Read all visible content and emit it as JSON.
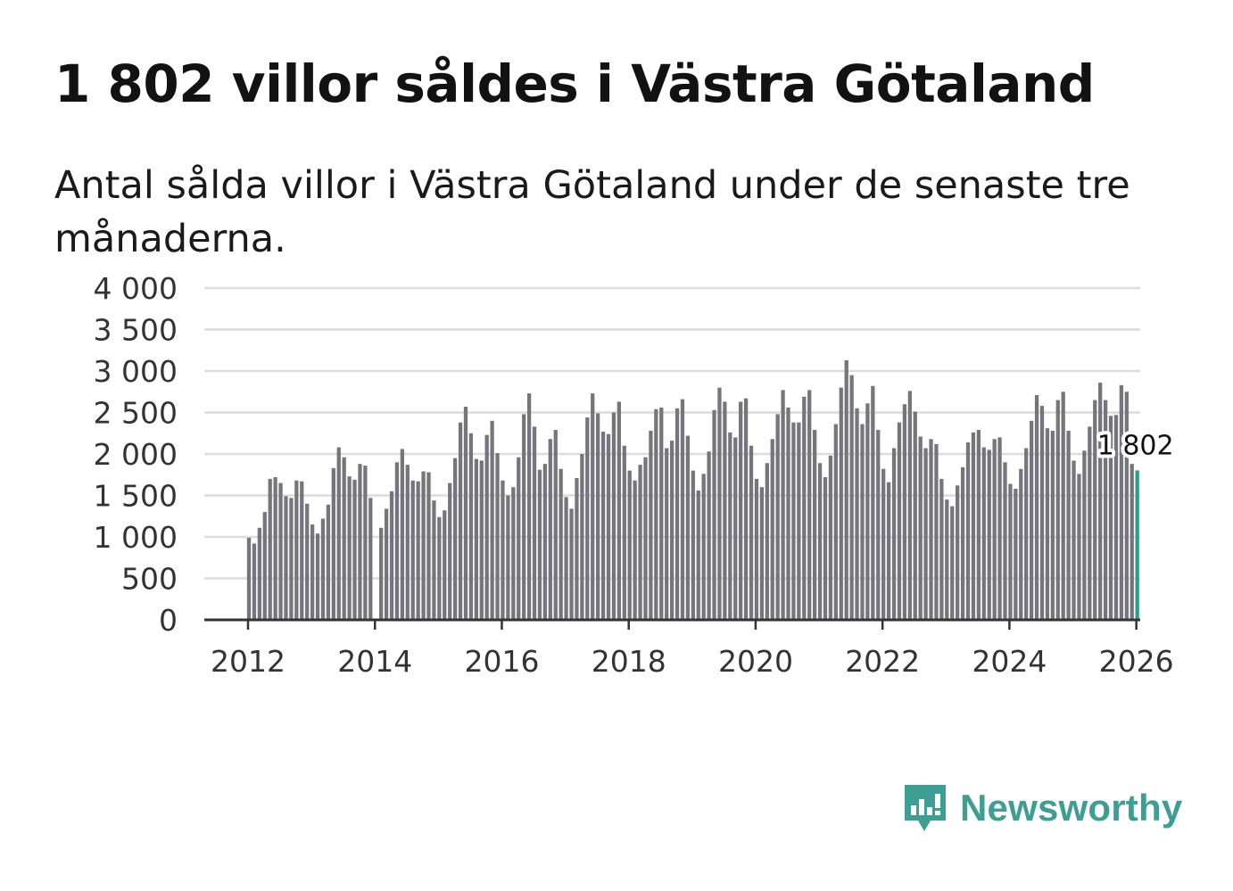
{
  "header": {
    "title": "1 802 villor såldes i Västra Götaland",
    "subtitle": "Antal sålda villor i Västra Götaland under de senaste tre månaderna."
  },
  "brand": {
    "name": "Newsworthy",
    "icon": "newsworthy-logo-icon",
    "color": "#3d9e94"
  },
  "colors": {
    "bar": "#76757b",
    "highlight": "#2a9d8f",
    "grid": "#dcdcdc",
    "axis": "#333333",
    "text": "#333333"
  },
  "chart_data": {
    "type": "bar",
    "title": "Antal sålda villor i Västra Götaland",
    "xlabel": "",
    "ylabel": "",
    "ylim": [
      0,
      4000
    ],
    "xlim": [
      2012,
      2026.75
    ],
    "grid": true,
    "yticks": [
      {
        "value": 0,
        "label": "0"
      },
      {
        "value": 500,
        "label": "500"
      },
      {
        "value": 1000,
        "label": "1 000"
      },
      {
        "value": 1500,
        "label": "1 500"
      },
      {
        "value": 2000,
        "label": "2 000"
      },
      {
        "value": 2500,
        "label": "2 500"
      },
      {
        "value": 3000,
        "label": "3 000"
      },
      {
        "value": 3500,
        "label": "3 500"
      },
      {
        "value": 4000,
        "label": "4 000"
      }
    ],
    "xticks": [
      {
        "value": 2012,
        "label": "2012"
      },
      {
        "value": 2014,
        "label": "2014"
      },
      {
        "value": 2016,
        "label": "2016"
      },
      {
        "value": 2018,
        "label": "2018"
      },
      {
        "value": 2020,
        "label": "2020"
      },
      {
        "value": 2022,
        "label": "2022"
      },
      {
        "value": 2024,
        "label": "2024"
      },
      {
        "value": 2026,
        "label": "2026"
      }
    ],
    "start_year": 2012,
    "annotation": {
      "label": "1 802",
      "value": 1802
    },
    "series": [
      {
        "name": "Antal sålda villor",
        "values": [
          990,
          920,
          1110,
          1300,
          1700,
          1720,
          1650,
          1490,
          1470,
          1680,
          1670,
          1400,
          1150,
          1040,
          1220,
          1390,
          1830,
          2080,
          1960,
          1730,
          1690,
          1880,
          1860,
          1470,
          null,
          1110,
          1340,
          1550,
          1900,
          2060,
          1870,
          1680,
          1670,
          1790,
          1780,
          1440,
          1240,
          1320,
          1650,
          1950,
          2380,
          2570,
          2250,
          1940,
          1920,
          2230,
          2400,
          2010,
          1680,
          1500,
          1600,
          1960,
          2480,
          2730,
          2330,
          1810,
          1880,
          2180,
          2290,
          1820,
          1480,
          1340,
          1710,
          2000,
          2440,
          2730,
          2490,
          2270,
          2240,
          2500,
          2630,
          2100,
          1800,
          1680,
          1870,
          1960,
          2280,
          2540,
          2560,
          2070,
          2160,
          2550,
          2660,
          2220,
          1800,
          1560,
          1760,
          2030,
          2530,
          2800,
          2630,
          2260,
          2200,
          2630,
          2670,
          2100,
          1700,
          1600,
          1890,
          2180,
          2480,
          2770,
          2560,
          2380,
          2380,
          2690,
          2770,
          2290,
          1890,
          1720,
          1980,
          2360,
          2800,
          3130,
          2950,
          2550,
          2360,
          2610,
          2820,
          2290,
          1820,
          1660,
          2070,
          2380,
          2600,
          2760,
          2510,
          2210,
          2070,
          2180,
          2120,
          1700,
          1450,
          1370,
          1620,
          1840,
          2140,
          2260,
          2290,
          2080,
          2050,
          2180,
          2200,
          1900,
          1640,
          1580,
          1820,
          2070,
          2400,
          2710,
          2580,
          2310,
          2280,
          2650,
          2750,
          2280,
          1920,
          1760,
          2040,
          2330,
          2650,
          2860,
          2650,
          2460,
          2470,
          2830,
          2750,
          1880,
          1802
        ]
      }
    ]
  }
}
